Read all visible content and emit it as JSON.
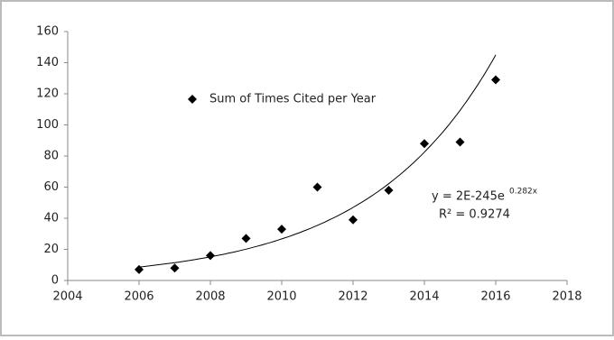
{
  "chart_data": {
    "type": "scatter",
    "series": [
      {
        "name": "Sum of Times Cited per Year",
        "color": "#000000",
        "x": [
          2006,
          2007,
          2008,
          2009,
          2010,
          2011,
          2012,
          2013,
          2014,
          2015,
          2016
        ],
        "values": [
          7,
          8,
          16,
          27,
          33,
          60,
          39,
          58,
          88,
          89,
          129
        ]
      }
    ],
    "xlim": [
      2004,
      2018
    ],
    "xticks": [
      2004,
      2006,
      2008,
      2010,
      2012,
      2014,
      2016,
      2018
    ],
    "ylim": [
      0,
      160
    ],
    "yticks": [
      0,
      20,
      40,
      60,
      80,
      100,
      120,
      140,
      160
    ],
    "grid": false,
    "legend": "top-left",
    "trendline": {
      "kind": "exponential",
      "equation": "y = 2E-245e",
      "exponent": "0.282x",
      "r_squared": "R² = 0.9274"
    }
  }
}
